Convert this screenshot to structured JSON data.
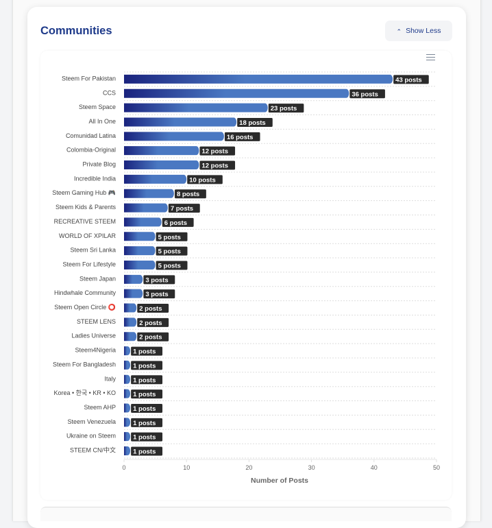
{
  "header": {
    "title": "Communities",
    "toggle_label": "Show Less",
    "toggle_icon": "chevron-up-icon",
    "menu_icon": "hamburger-menu-icon"
  },
  "chart_data": {
    "type": "bar",
    "orientation": "horizontal",
    "title": "",
    "xlabel": "Number of Posts",
    "ylabel": "",
    "xlim": [
      0,
      50
    ],
    "xticks": [
      0,
      10,
      20,
      30,
      40,
      50
    ],
    "grid": true,
    "legend": "none",
    "value_suffix": " posts",
    "colors": {
      "start": "#1a237e",
      "end": "#4a78c2",
      "label_bg": "#2b2b2b",
      "label_text": "#ffffff",
      "tick_text": "#666666",
      "category_text": "#444444"
    },
    "categories": [
      "Steem For Pakistan",
      "CCS",
      "Steem Space",
      "All In One",
      "Comunidad Latina",
      "Colombia-Original",
      "Private Blog",
      "Incredible India",
      "Steem Gaming Hub 🎮",
      "Steem Kids & Parents",
      "RECREATIVE STEEM",
      "WORLD OF XPILAR",
      "Steem Sri Lanka",
      "Steem For Lifestyle",
      "Steem Japan",
      "Hindwhale Community",
      "Steem Open Circle ⭕",
      "STEEM LENS",
      "Ladies Universe",
      "Steem4Nigeria",
      "Steem For Bangladesh",
      "Italy",
      "Korea • 한국 • KR • KO",
      "Steem AHP",
      "Steem Venezuela",
      "Ukraine on Steem",
      "STEEM CN/中文"
    ],
    "values": [
      43,
      36,
      23,
      18,
      16,
      12,
      12,
      10,
      8,
      7,
      6,
      5,
      5,
      5,
      3,
      3,
      2,
      2,
      2,
      1,
      1,
      1,
      1,
      1,
      1,
      1,
      1
    ]
  }
}
